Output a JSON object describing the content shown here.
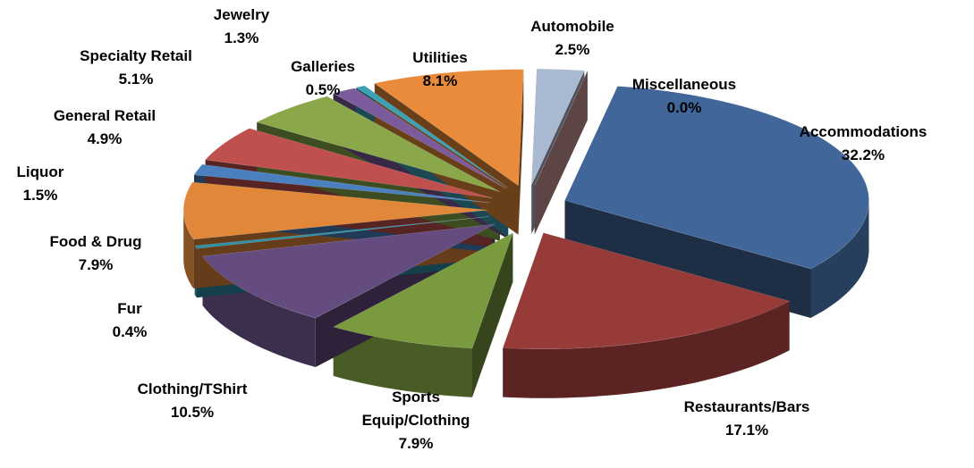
{
  "chart_data": {
    "type": "pie",
    "categories": [
      "Accommodations",
      "Restaurants/Bars",
      "Sports Equip/Clothing",
      "Clothing/TShirt",
      "Fur",
      "Food & Drug",
      "Liquor",
      "General Retail",
      "Specialty Retail",
      "Jewelry",
      "Galleries",
      "Utilities",
      "Automobile",
      "Miscellaneous"
    ],
    "values": [
      32.2,
      17.1,
      7.9,
      10.5,
      0.4,
      7.9,
      1.5,
      4.9,
      5.1,
      1.3,
      0.5,
      8.1,
      2.5,
      0.0
    ],
    "value_labels": [
      "32.2%",
      "17.1%",
      "7.9%",
      "10.5%",
      "0.4%",
      "7.9%",
      "1.5%",
      "4.9%",
      "5.1%",
      "1.3%",
      "0.5%",
      "8.1%",
      "2.5%",
      "0.0%"
    ],
    "colors": [
      "#41679a",
      "#973b39",
      "#7a9a3e",
      "#644c80",
      "#2f8fa6",
      "#e0873a",
      "#4a80c0",
      "#c0504d",
      "#8aa84a",
      "#7b5b9b",
      "#3ba1b6",
      "#e98b3a",
      "#a9b9d2",
      "#d19a9a"
    ]
  }
}
